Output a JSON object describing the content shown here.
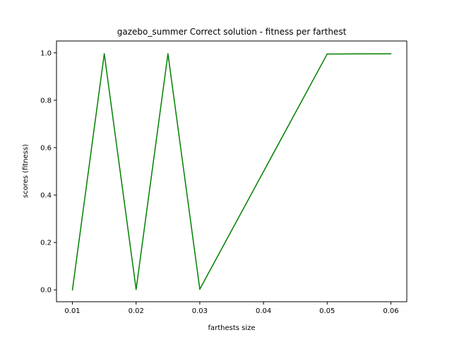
{
  "chart_data": {
    "type": "line",
    "title": "gazebo_summer Correct solution - fitness per farthest",
    "xlabel": "farthests size",
    "ylabel": "scores (fitness)",
    "xlim": [
      0.0075,
      0.0625
    ],
    "ylim": [
      -0.05,
      1.05
    ],
    "x_ticks": [
      "0.01",
      "0.02",
      "0.03",
      "0.04",
      "0.05",
      "0.06"
    ],
    "y_ticks": [
      "0.0",
      "0.2",
      "0.4",
      "0.6",
      "0.8",
      "1.0"
    ],
    "grid": false,
    "legend": "none",
    "series": [
      {
        "color": "#008000",
        "x": [
          0.01,
          0.015,
          0.02,
          0.025,
          0.03,
          0.05,
          0.06
        ],
        "y": [
          0.0,
          0.996,
          0.002,
          0.996,
          0.003,
          0.995,
          0.996
        ]
      }
    ]
  }
}
